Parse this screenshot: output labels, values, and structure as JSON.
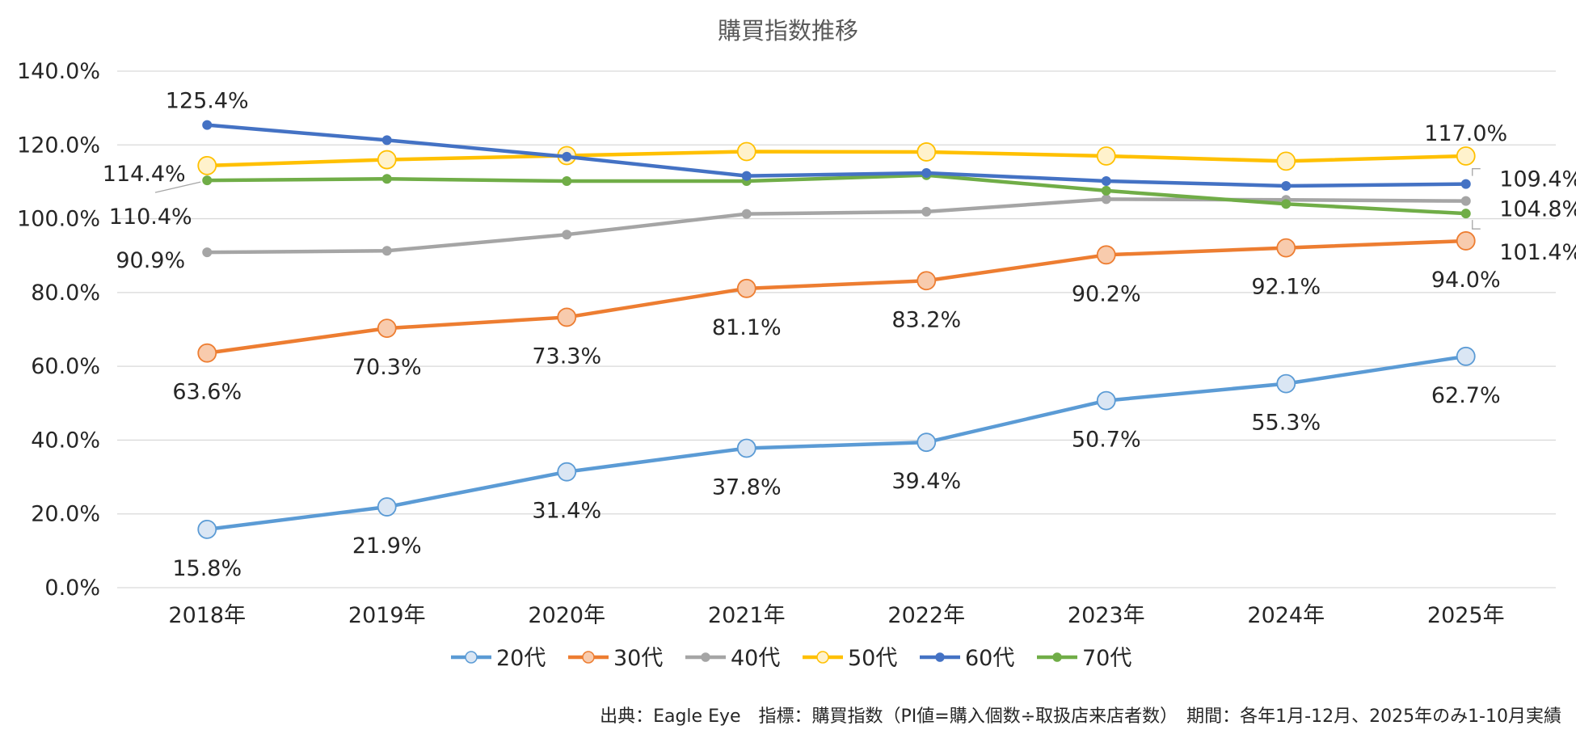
{
  "chart_data": {
    "type": "line",
    "title": "購買指数推移",
    "categories": [
      "2018年",
      "2019年",
      "2020年",
      "2021年",
      "2022年",
      "2023年",
      "2024年",
      "2025年"
    ],
    "y_ticks": [
      "0.0%",
      "20.0%",
      "40.0%",
      "60.0%",
      "80.0%",
      "100.0%",
      "120.0%",
      "140.0%"
    ],
    "ylim": [
      0,
      140
    ],
    "grid": true,
    "legend_position": "bottom",
    "series": [
      {
        "name": "20代",
        "color": "#5b9bd5",
        "fill": "#dae6f4",
        "marker": "large",
        "values": [
          15.8,
          21.9,
          31.4,
          37.8,
          39.4,
          50.7,
          55.3,
          62.7
        ],
        "labels": [
          "15.8%",
          "21.9%",
          "31.4%",
          "37.8%",
          "39.4%",
          "50.7%",
          "55.3%",
          "62.7%"
        ]
      },
      {
        "name": "30代",
        "color": "#ed7d31",
        "fill": "#f8cbad",
        "marker": "large",
        "values": [
          63.6,
          70.3,
          73.3,
          81.1,
          83.2,
          90.2,
          92.1,
          94.0
        ],
        "labels": [
          "63.6%",
          "70.3%",
          "73.3%",
          "81.1%",
          "83.2%",
          "90.2%",
          "92.1%",
          "94.0%"
        ]
      },
      {
        "name": "40代",
        "color": "#a5a5a5",
        "fill": "#a5a5a5",
        "marker": "small",
        "values": [
          90.9,
          91.3,
          95.7,
          101.3,
          101.9,
          105.3,
          105.1,
          104.8
        ],
        "labels": [
          "90.9%",
          "",
          "",
          "",
          "",
          "",
          "",
          "104.8%"
        ]
      },
      {
        "name": "50代",
        "color": "#ffc000",
        "fill": "#fff2cc",
        "marker": "large",
        "values": [
          114.4,
          116.0,
          117.1,
          118.2,
          118.1,
          117.0,
          115.6,
          117.0
        ],
        "labels": [
          "114.4%",
          "",
          "",
          "",
          "",
          "",
          "",
          "117.0%"
        ]
      },
      {
        "name": "60代",
        "color": "#4472c4",
        "fill": "#4472c4",
        "marker": "small",
        "values": [
          125.4,
          121.3,
          116.8,
          111.6,
          112.4,
          110.2,
          108.9,
          109.4
        ],
        "labels": [
          "125.4%",
          "",
          "",
          "",
          "",
          "",
          "",
          "109.4%"
        ]
      },
      {
        "name": "70代",
        "color": "#70ad47",
        "fill": "#70ad47",
        "marker": "small",
        "values": [
          110.4,
          110.8,
          110.2,
          110.2,
          111.8,
          107.6,
          104.0,
          101.4
        ],
        "labels": [
          "110.4%",
          "",
          "",
          "",
          "",
          "",
          "",
          "101.4%"
        ]
      }
    ],
    "source_note": "出典：Eagle Eye　指標：購買指数（PI値=購入個数÷取扱店来店者数）　期間：各年1月-12月、2025年のみ1-10月実績"
  }
}
